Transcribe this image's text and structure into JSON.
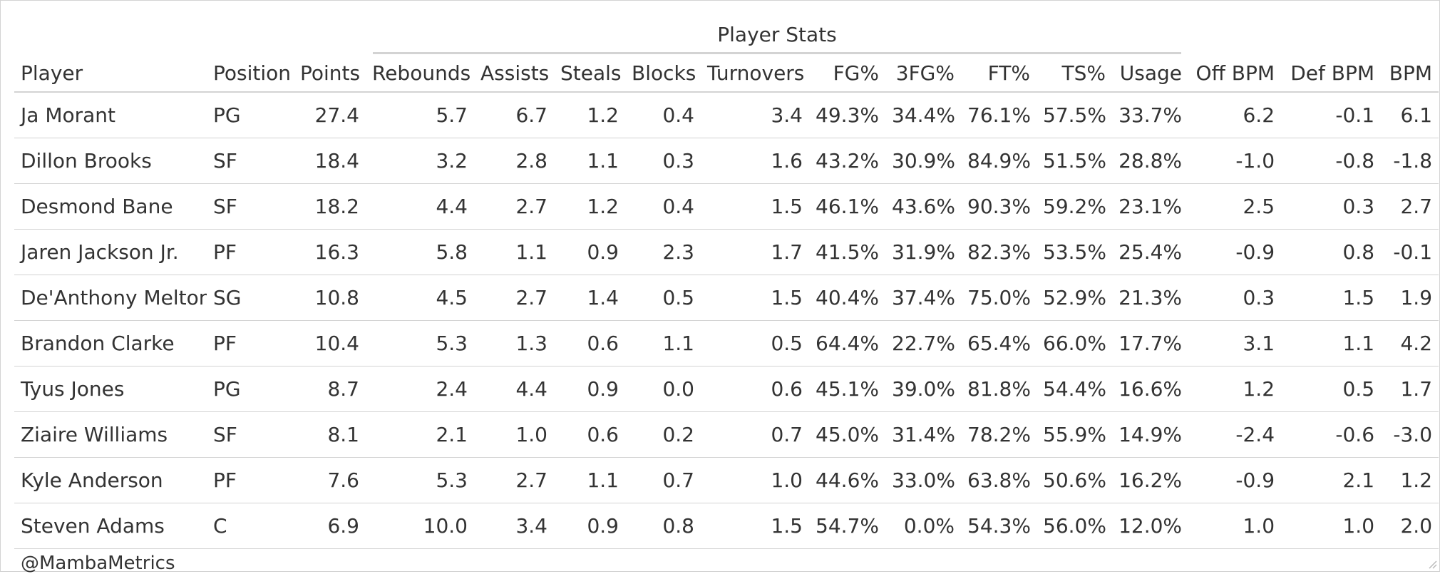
{
  "chart_data": {
    "type": "table",
    "spanner": "Player Stats",
    "columns": [
      "Player",
      "Position",
      "Points",
      "Rebounds",
      "Assists",
      "Steals",
      "Blocks",
      "Turnovers",
      "FG%",
      "3FG%",
      "FT%",
      "TS%",
      "Usage",
      "Off BPM",
      "Def BPM",
      "BPM"
    ],
    "rows": [
      [
        "Ja Morant",
        "PG",
        "27.4",
        "5.7",
        "6.7",
        "1.2",
        "0.4",
        "3.4",
        "49.3%",
        "34.4%",
        "76.1%",
        "57.5%",
        "33.7%",
        "6.2",
        "-0.1",
        "6.1"
      ],
      [
        "Dillon Brooks",
        "SF",
        "18.4",
        "3.2",
        "2.8",
        "1.1",
        "0.3",
        "1.6",
        "43.2%",
        "30.9%",
        "84.9%",
        "51.5%",
        "28.8%",
        "-1.0",
        "-0.8",
        "-1.8"
      ],
      [
        "Desmond Bane",
        "SF",
        "18.2",
        "4.4",
        "2.7",
        "1.2",
        "0.4",
        "1.5",
        "46.1%",
        "43.6%",
        "90.3%",
        "59.2%",
        "23.1%",
        "2.5",
        "0.3",
        "2.7"
      ],
      [
        "Jaren Jackson Jr.",
        "PF",
        "16.3",
        "5.8",
        "1.1",
        "0.9",
        "2.3",
        "1.7",
        "41.5%",
        "31.9%",
        "82.3%",
        "53.5%",
        "25.4%",
        "-0.9",
        "0.8",
        "-0.1"
      ],
      [
        "De'Anthony Melton",
        "SG",
        "10.8",
        "4.5",
        "2.7",
        "1.4",
        "0.5",
        "1.5",
        "40.4%",
        "37.4%",
        "75.0%",
        "52.9%",
        "21.3%",
        "0.3",
        "1.5",
        "1.9"
      ],
      [
        "Brandon Clarke",
        "PF",
        "10.4",
        "5.3",
        "1.3",
        "0.6",
        "1.1",
        "0.5",
        "64.4%",
        "22.7%",
        "65.4%",
        "66.0%",
        "17.7%",
        "3.1",
        "1.1",
        "4.2"
      ],
      [
        "Tyus Jones",
        "PG",
        "8.7",
        "2.4",
        "4.4",
        "0.9",
        "0.0",
        "0.6",
        "45.1%",
        "39.0%",
        "81.8%",
        "54.4%",
        "16.6%",
        "1.2",
        "0.5",
        "1.7"
      ],
      [
        "Ziaire Williams",
        "SF",
        "8.1",
        "2.1",
        "1.0",
        "0.6",
        "0.2",
        "0.7",
        "45.0%",
        "31.4%",
        "78.2%",
        "55.9%",
        "14.9%",
        "-2.4",
        "-0.6",
        "-3.0"
      ],
      [
        "Kyle Anderson",
        "PF",
        "7.6",
        "5.3",
        "2.7",
        "1.1",
        "0.7",
        "1.0",
        "44.6%",
        "33.0%",
        "63.8%",
        "50.6%",
        "16.2%",
        "-0.9",
        "2.1",
        "1.2"
      ],
      [
        "Steven Adams",
        "C",
        "6.9",
        "10.0",
        "3.4",
        "0.9",
        "0.8",
        "1.5",
        "54.7%",
        "0.0%",
        "54.3%",
        "56.0%",
        "12.0%",
        "1.0",
        "1.0",
        "2.0"
      ]
    ],
    "source_note": "@MambaMetrics"
  },
  "colors": {
    "text": "#333333",
    "rule": "#d3d3d3",
    "background": "#ffffff"
  }
}
